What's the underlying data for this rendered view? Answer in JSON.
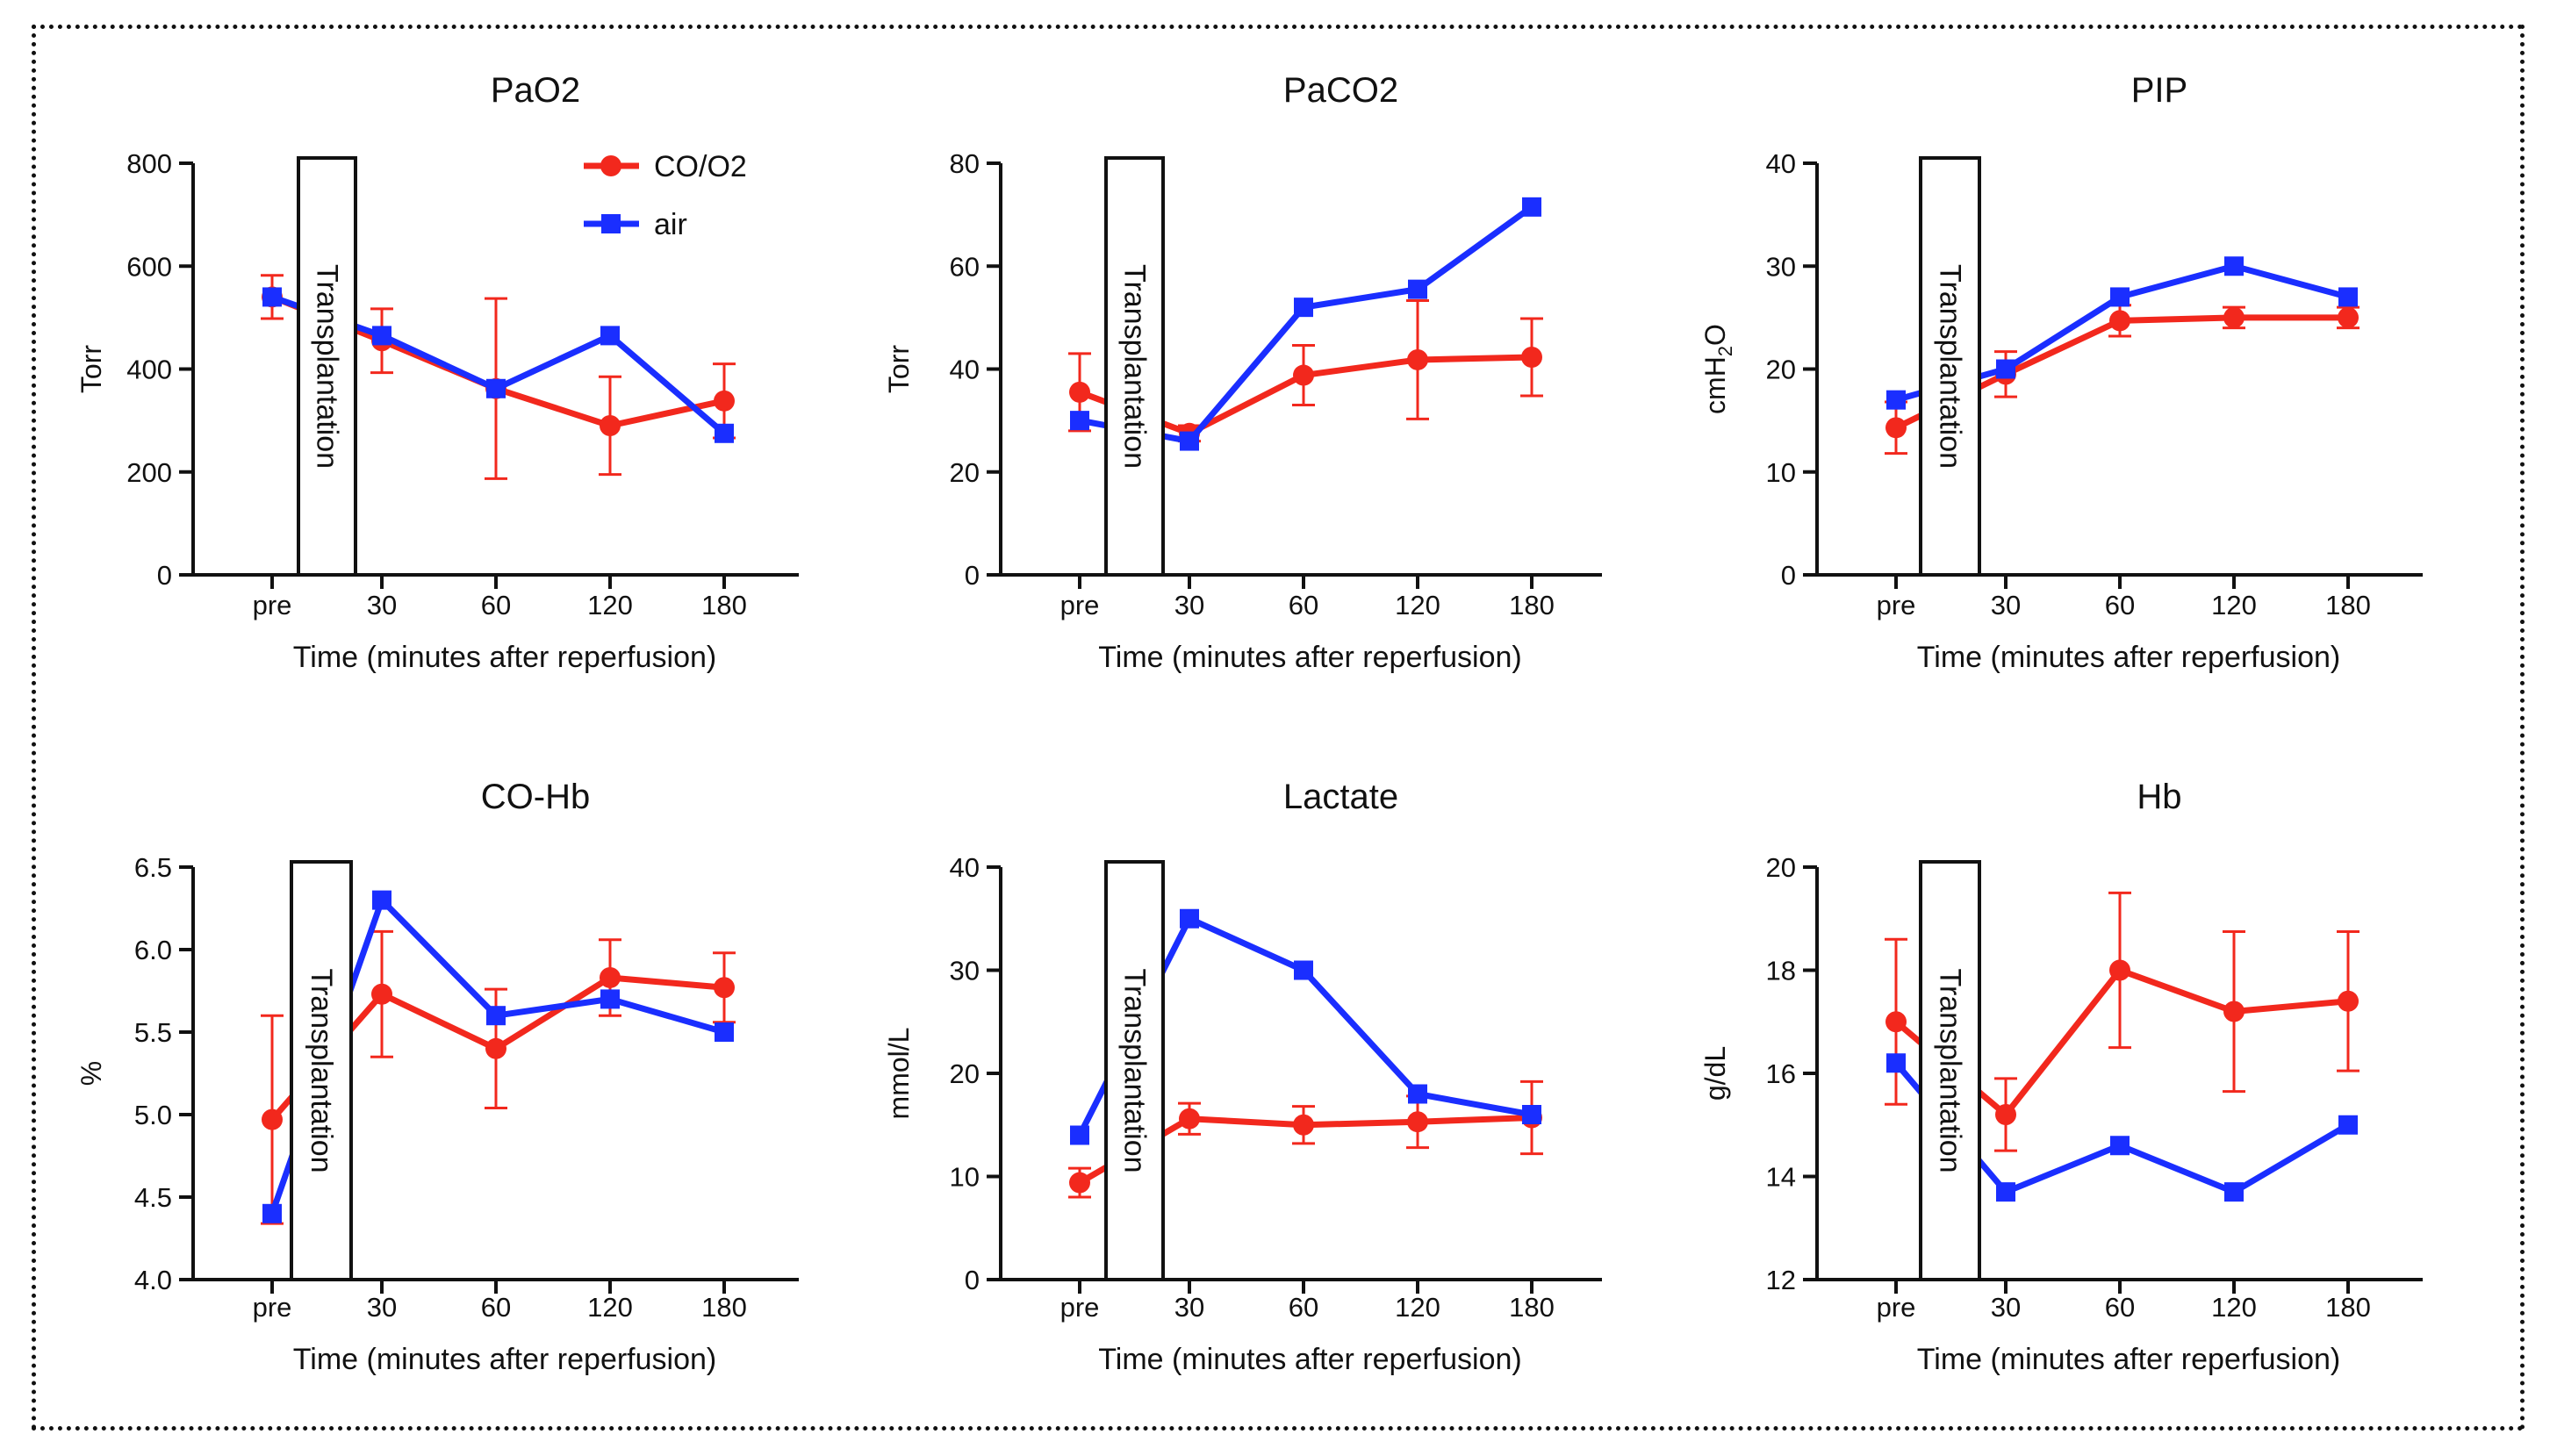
{
  "legend": {
    "series": [
      {
        "name": "CO/O2",
        "color": "#f2281d",
        "marker": "circle"
      },
      {
        "name": "air",
        "color": "#1a2eff",
        "marker": "square"
      }
    ]
  },
  "box_label": "Transplantation",
  "chart_data": [
    {
      "type": "line",
      "title": "PaO2",
      "xlabel": "Time (minutes after reperfusion)",
      "ylabel": "Torr",
      "categories": [
        "pre",
        "30",
        "60",
        "120",
        "180"
      ],
      "ylim": [
        0,
        800
      ],
      "yticks": [
        0,
        200,
        400,
        600,
        800
      ],
      "series": [
        {
          "name": "CO/O2",
          "values": [
            540,
            455,
            362,
            290,
            338
          ],
          "error": [
            42,
            62,
            175,
            95,
            72
          ]
        },
        {
          "name": "air",
          "values": [
            540,
            465,
            362,
            465,
            275
          ]
        }
      ]
    },
    {
      "type": "line",
      "title": "PaCO2",
      "xlabel": "Time (minutes after reperfusion)",
      "ylabel": "Torr",
      "categories": [
        "pre",
        "30",
        "60",
        "120",
        "180"
      ],
      "ylim": [
        0,
        80
      ],
      "yticks": [
        0,
        20,
        40,
        60,
        80
      ],
      "series": [
        {
          "name": "CO/O2",
          "values": [
            35.5,
            27.5,
            38.8,
            41.8,
            42.3
          ],
          "error": [
            7.5,
            1.5,
            5.8,
            11.5,
            7.5
          ]
        },
        {
          "name": "air",
          "values": [
            30,
            26,
            52,
            55.5,
            71.5
          ]
        }
      ]
    },
    {
      "type": "line",
      "title": "PIP",
      "xlabel": "Time (minutes after reperfusion)",
      "ylabel": "cmH2O",
      "categories": [
        "pre",
        "30",
        "60",
        "120",
        "180"
      ],
      "ylim": [
        0,
        40
      ],
      "yticks": [
        0,
        10,
        20,
        30,
        40
      ],
      "series": [
        {
          "name": "CO/O2",
          "values": [
            14.3,
            19.5,
            24.7,
            25,
            25
          ],
          "error": [
            2.5,
            2.2,
            1.5,
            1,
            1
          ]
        },
        {
          "name": "air",
          "values": [
            17,
            20,
            27,
            30,
            27
          ]
        }
      ]
    },
    {
      "type": "line",
      "title": "CO-Hb",
      "xlabel": "Time (minutes after reperfusion)",
      "ylabel": "%",
      "categories": [
        "pre",
        "30",
        "60",
        "120",
        "180"
      ],
      "ylim": [
        4.0,
        6.5
      ],
      "yticks": [
        "4.0",
        "4.5",
        "5.0",
        "5.5",
        "6.0",
        "6.5"
      ],
      "series": [
        {
          "name": "CO/O2",
          "values": [
            4.97,
            5.73,
            5.4,
            5.83,
            5.77
          ],
          "error": [
            0.63,
            0.38,
            0.36,
            0.23,
            0.21
          ]
        },
        {
          "name": "air",
          "values": [
            4.4,
            6.3,
            5.6,
            5.7,
            5.5
          ]
        }
      ]
    },
    {
      "type": "line",
      "title": "Lactate",
      "xlabel": "Time (minutes after reperfusion)",
      "ylabel": "mmol/L",
      "categories": [
        "pre",
        "30",
        "60",
        "120",
        "180"
      ],
      "ylim": [
        0,
        40
      ],
      "yticks": [
        0,
        10,
        20,
        30,
        40
      ],
      "series": [
        {
          "name": "CO/O2",
          "values": [
            9.4,
            15.6,
            15,
            15.3,
            15.7
          ],
          "error": [
            1.4,
            1.5,
            1.8,
            2.5,
            3.5
          ]
        },
        {
          "name": "air",
          "values": [
            14,
            35,
            30,
            18,
            16
          ]
        }
      ]
    },
    {
      "type": "line",
      "title": "Hb",
      "xlabel": "Time (minutes after reperfusion)",
      "ylabel": "g/dL",
      "categories": [
        "pre",
        "30",
        "60",
        "120",
        "180"
      ],
      "ylim": [
        12,
        20
      ],
      "yticks": [
        12,
        14,
        16,
        18,
        20
      ],
      "series": [
        {
          "name": "CO/O2",
          "values": [
            17,
            15.2,
            18,
            17.2,
            17.4
          ],
          "error": [
            1.6,
            0.7,
            1.5,
            1.55,
            1.35
          ]
        },
        {
          "name": "air",
          "values": [
            16.2,
            13.7,
            14.6,
            13.7,
            15
          ]
        }
      ]
    }
  ]
}
